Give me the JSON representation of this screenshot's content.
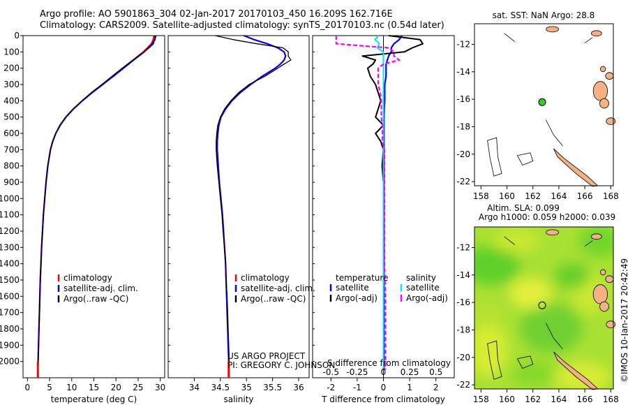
{
  "header": {
    "line1": "Argo profile: AO 5901863_304 02-Jan-2017 20170103_450 16.209S 162.716E",
    "line2": "Climatology: CARS2009. Satellite-adjusted climatology: synTS_20170103.nc (0.54d later)"
  },
  "credits": {
    "project": "US ARGO PROJECT",
    "pi": "PI: GREGORY C. JOHNSON",
    "stamp": "©IMOS 10-Jan-2017 20:42:49"
  },
  "colors": {
    "climatology": "#ff0000",
    "satellite": "#0000ff",
    "argo": "#000000",
    "salinity_satellite": "#00e5ee",
    "salinity_argo": "#ff00ff",
    "land": "#f4b183",
    "float_marker": "#33cc33",
    "sla_field": "#a8e033"
  },
  "chart_data": [
    {
      "type": "line",
      "xlabel": "temperature (deg C)",
      "ylabel": "",
      "xlim": [
        -1,
        31
      ],
      "ylim": [
        2100,
        0
      ],
      "xticks": [
        0,
        5,
        10,
        15,
        20,
        25,
        30
      ],
      "yticks": [
        0,
        100,
        200,
        300,
        400,
        500,
        600,
        700,
        800,
        900,
        1000,
        1100,
        1200,
        1300,
        1400,
        1500,
        1600,
        1700,
        1800,
        1900,
        2000
      ],
      "legend": [
        "climatology",
        "satellite-adj. clim.",
        "Argo(..raw -QC)"
      ],
      "legend_location": "lower-center",
      "depth": [
        0,
        25,
        50,
        75,
        100,
        150,
        200,
        250,
        300,
        350,
        400,
        450,
        500,
        550,
        600,
        650,
        700,
        800,
        900,
        1000,
        1100,
        1200,
        1300,
        1400,
        1500,
        1600,
        1700,
        1800,
        1900,
        2000,
        2050
      ],
      "series": [
        {
          "name": "climatology",
          "values": [
            28.6,
            28.4,
            28.0,
            27.1,
            26.2,
            23.9,
            21.6,
            19.3,
            17.0,
            14.6,
            12.4,
            10.4,
            8.7,
            7.4,
            6.4,
            5.7,
            5.2,
            4.6,
            4.2,
            3.9,
            3.6,
            3.4,
            3.2,
            3.05,
            2.9,
            2.8,
            2.7,
            2.6,
            2.5,
            2.4,
            2.35
          ]
        },
        {
          "name": "satellite-adj. clim.",
          "values": [
            29.0,
            28.8,
            28.2,
            27.3,
            26.4,
            24.0,
            21.7,
            19.4,
            17.0,
            14.6,
            12.4,
            10.4,
            8.7,
            7.4,
            6.4,
            5.7,
            5.2,
            4.6,
            4.2,
            3.9,
            3.6,
            3.4,
            3.2,
            3.05,
            2.9,
            2.8,
            2.7,
            2.6,
            2.5,
            2.4,
            2.35
          ]
        },
        {
          "name": "Argo(..raw -QC)",
          "values": [
            28.8,
            28.7,
            28.5,
            27.5,
            26.3,
            23.8,
            21.4,
            19.1,
            16.8,
            14.4,
            12.3,
            10.3,
            8.6,
            7.3,
            6.4,
            5.7,
            5.2,
            4.6,
            4.2,
            3.9,
            3.6,
            3.4,
            3.2,
            3.05,
            2.9,
            2.8,
            2.7,
            2.6,
            2.5,
            2.4,
            2.35
          ]
        }
      ]
    },
    {
      "type": "line",
      "xlabel": "salinity",
      "xlim": [
        33.5,
        36.2
      ],
      "ylim": [
        2100,
        0
      ],
      "xticks": [
        34,
        34.5,
        35,
        35.5,
        36
      ],
      "legend": [
        "climatology",
        "satellite-adj. clim.",
        "Argo(..raw -QC)"
      ],
      "legend_location": "lower-center",
      "depth": [
        0,
        25,
        50,
        75,
        100,
        125,
        150,
        175,
        200,
        250,
        300,
        350,
        400,
        450,
        500,
        550,
        600,
        650,
        700,
        800,
        900,
        1000,
        1100,
        1200,
        1300,
        1400,
        1500,
        1600,
        1700,
        1800,
        1900,
        2000
      ],
      "series": [
        {
          "name": "climatology",
          "values": [
            34.95,
            35.15,
            35.4,
            35.6,
            35.72,
            35.75,
            35.72,
            35.65,
            35.55,
            35.3,
            35.08,
            34.88,
            34.72,
            34.6,
            34.51,
            34.47,
            34.45,
            34.44,
            34.44,
            34.46,
            34.48,
            34.51,
            34.54,
            34.56,
            34.58,
            34.6,
            34.61,
            34.62,
            34.63,
            34.64,
            34.65,
            34.66
          ]
        },
        {
          "name": "satellite-adj. clim.",
          "values": [
            34.95,
            35.15,
            35.4,
            35.6,
            35.72,
            35.75,
            35.72,
            35.65,
            35.55,
            35.3,
            35.08,
            34.88,
            34.72,
            34.6,
            34.51,
            34.47,
            34.45,
            34.44,
            34.44,
            34.46,
            34.48,
            34.51,
            34.54,
            34.56,
            34.58,
            34.6,
            34.61,
            34.62,
            34.63,
            34.64,
            34.65,
            34.66
          ]
        },
        {
          "name": "Argo(..raw -QC)",
          "values": [
            34.4,
            34.75,
            35.2,
            35.7,
            35.8,
            35.8,
            35.85,
            35.72,
            35.6,
            35.35,
            35.05,
            34.85,
            34.7,
            34.58,
            34.5,
            34.45,
            34.43,
            34.42,
            34.42,
            34.44,
            34.47,
            34.5,
            34.53,
            34.55,
            34.58,
            34.6,
            34.61,
            34.63,
            34.64,
            34.65,
            34.66,
            34.67
          ]
        }
      ]
    },
    {
      "type": "line",
      "xlabel": "T difference from climatology",
      "xlabel_top": "S difference from climatology",
      "xlim": [
        -2.7,
        2.7
      ],
      "ylim": [
        2100,
        0
      ],
      "xticks": [
        -2,
        -1,
        0,
        1,
        2
      ],
      "xticks_top": [
        -0.5,
        -0.25,
        0,
        0.25,
        0.5
      ],
      "legend": [
        "temperature",
        "satellite",
        "Argo(-adj)",
        "salinity",
        "satellite",
        "Argo(-adj)"
      ],
      "legend_location": "lower-center",
      "depth": [
        0,
        25,
        50,
        75,
        100,
        125,
        150,
        175,
        200,
        250,
        300,
        350,
        400,
        450,
        500,
        550,
        600,
        650,
        700,
        800,
        900,
        1000,
        1200,
        1400,
        1600,
        1800,
        2000,
        2050
      ],
      "series": [
        {
          "name": "temperature satellite",
          "values": [
            0.7,
            0.6,
            0.4,
            0.3,
            0.3,
            0.2,
            0.15,
            0.1,
            0.1,
            0.1,
            0.05,
            0.05,
            0.05,
            0.03,
            0.02,
            0.02,
            0.02,
            0.02,
            0.02,
            0.02,
            0.02,
            0.02,
            0.02,
            0.02,
            0.02,
            0.02,
            0.02,
            0.02
          ]
        },
        {
          "name": "temperature Argo(-adj)",
          "values": [
            0.2,
            1.4,
            1.5,
            1.1,
            0.8,
            -0.8,
            -0.3,
            -0.4,
            -0.6,
            -0.5,
            -0.3,
            -0.2,
            -0.1,
            -0.2,
            -0.3,
            0.0,
            -0.3,
            -0.1,
            0.0,
            -0.05,
            0.0,
            0.0,
            0.0,
            0.0,
            0.0,
            0.0,
            0.0,
            0.0
          ]
        },
        {
          "name": "salinity satellite",
          "values": [
            -0.05,
            -0.08,
            -0.04,
            -0.06,
            0.0,
            0.0,
            0.0,
            0.0,
            0.0,
            0.0,
            0.0,
            0.0,
            0.0,
            0.0,
            0.0,
            0.0,
            0.0,
            0.0,
            0.0,
            0.0,
            0.0,
            0.0,
            0.0,
            0.0,
            0.0,
            0.0,
            0.0,
            0.0
          ]
        },
        {
          "name": "salinity Argo(-adj)",
          "values": [
            -0.45,
            -0.45,
            -0.45,
            0.05,
            0.1,
            0.1,
            0.15,
            0.0,
            -0.05,
            -0.05,
            -0.05,
            -0.03,
            -0.02,
            -0.02,
            -0.02,
            -0.01,
            -0.01,
            -0.01,
            0.01,
            0.01,
            0.01,
            0.01,
            0.01,
            0.01,
            0.02,
            0.02,
            0.02,
            0.02
          ]
        }
      ]
    },
    {
      "type": "scatter",
      "title": "sat. SST: NaN Argo: 28.8",
      "xlim": [
        157.5,
        168.2
      ],
      "ylim": [
        -22.3,
        -10.5
      ],
      "xticks": [
        158,
        160,
        162,
        164,
        166,
        168
      ],
      "yticks": [
        -12,
        -14,
        -16,
        -18,
        -20,
        -22
      ],
      "point": {
        "lon": 162.716,
        "lat": -16.209
      }
    },
    {
      "type": "heatmap",
      "title": "Altim. SLA: 0.099",
      "subtitle": "Argo h1000: 0.059 h2000: 0.039",
      "xlim": [
        157.5,
        168.2
      ],
      "ylim": [
        -22.3,
        -10.5
      ],
      "xticks": [
        158,
        160,
        162,
        164,
        166,
        168
      ],
      "yticks": [
        -12,
        -14,
        -16,
        -18,
        -20,
        -22
      ],
      "point": {
        "lon": 162.716,
        "lat": -16.209
      }
    }
  ]
}
